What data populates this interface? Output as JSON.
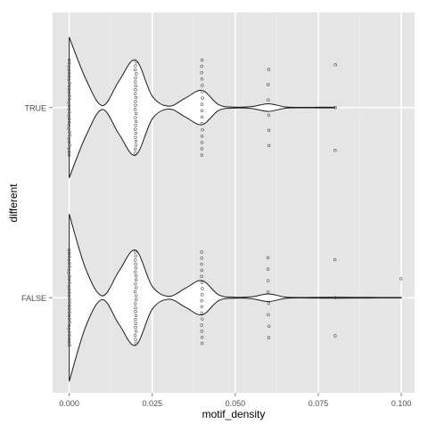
{
  "chart_data": {
    "type": "violin",
    "orientation": "horizontal",
    "xlabel": "motif_density",
    "ylabel": "different",
    "xlim": [
      -0.005,
      0.104
    ],
    "xticks": [
      0.0,
      0.025,
      0.05,
      0.075,
      0.1
    ],
    "xtick_labels": [
      "0.000",
      "0.025",
      "0.050",
      "0.075",
      "0.100"
    ],
    "categories": [
      "TRUE",
      "FALSE"
    ],
    "grid": true,
    "legend": "none",
    "colors": {
      "panel": "#e5e5e5",
      "grid_major": "#ffffff",
      "grid_minor": "#f2f2f2",
      "violin_fill": "#ffffff",
      "violin_stroke": "#1a1a1a",
      "points": "#555555",
      "tick_text": "#4d4d4d"
    },
    "series": [
      {
        "group": "TRUE",
        "points": [
          {
            "x": 0.0,
            "count": 30,
            "spread": 0.5
          },
          {
            "x": 0.02,
            "count": 24,
            "spread": 0.48
          },
          {
            "x": 0.04,
            "count": 16,
            "spread": 0.5
          },
          {
            "x": 0.06,
            "count": 6,
            "spread": 0.4
          },
          {
            "x": 0.08,
            "count": 3,
            "spread": 0.45
          }
        ],
        "density": {
          "x": [
            0.0,
            0.005,
            0.01,
            0.015,
            0.02,
            0.025,
            0.03,
            0.035,
            0.04,
            0.045,
            0.05,
            0.055,
            0.06,
            0.065,
            0.07,
            0.075,
            0.08
          ],
          "w": [
            0.74,
            0.3,
            0.02,
            0.28,
            0.5,
            0.12,
            0.015,
            0.1,
            0.18,
            0.03,
            0.005,
            0.01,
            0.04,
            0.007,
            0.002,
            0.003,
            0.004
          ]
        }
      },
      {
        "group": "FALSE",
        "points": [
          {
            "x": 0.0,
            "count": 30,
            "spread": 0.5
          },
          {
            "x": 0.02,
            "count": 24,
            "spread": 0.48
          },
          {
            "x": 0.04,
            "count": 16,
            "spread": 0.48
          },
          {
            "x": 0.06,
            "count": 8,
            "spread": 0.42
          },
          {
            "x": 0.08,
            "count": 3,
            "spread": 0.4
          },
          {
            "x": 0.1,
            "count": 1,
            "spread": 0.2
          }
        ],
        "density": {
          "x": [
            0.0,
            0.005,
            0.01,
            0.015,
            0.02,
            0.025,
            0.03,
            0.035,
            0.04,
            0.045,
            0.05,
            0.055,
            0.06,
            0.065,
            0.07,
            0.075,
            0.08,
            0.09,
            0.1
          ],
          "w": [
            0.88,
            0.3,
            0.02,
            0.28,
            0.5,
            0.12,
            0.015,
            0.1,
            0.18,
            0.03,
            0.005,
            0.01,
            0.04,
            0.007,
            0.002,
            0.004,
            0.005,
            0.003,
            0.002
          ]
        }
      }
    ]
  }
}
